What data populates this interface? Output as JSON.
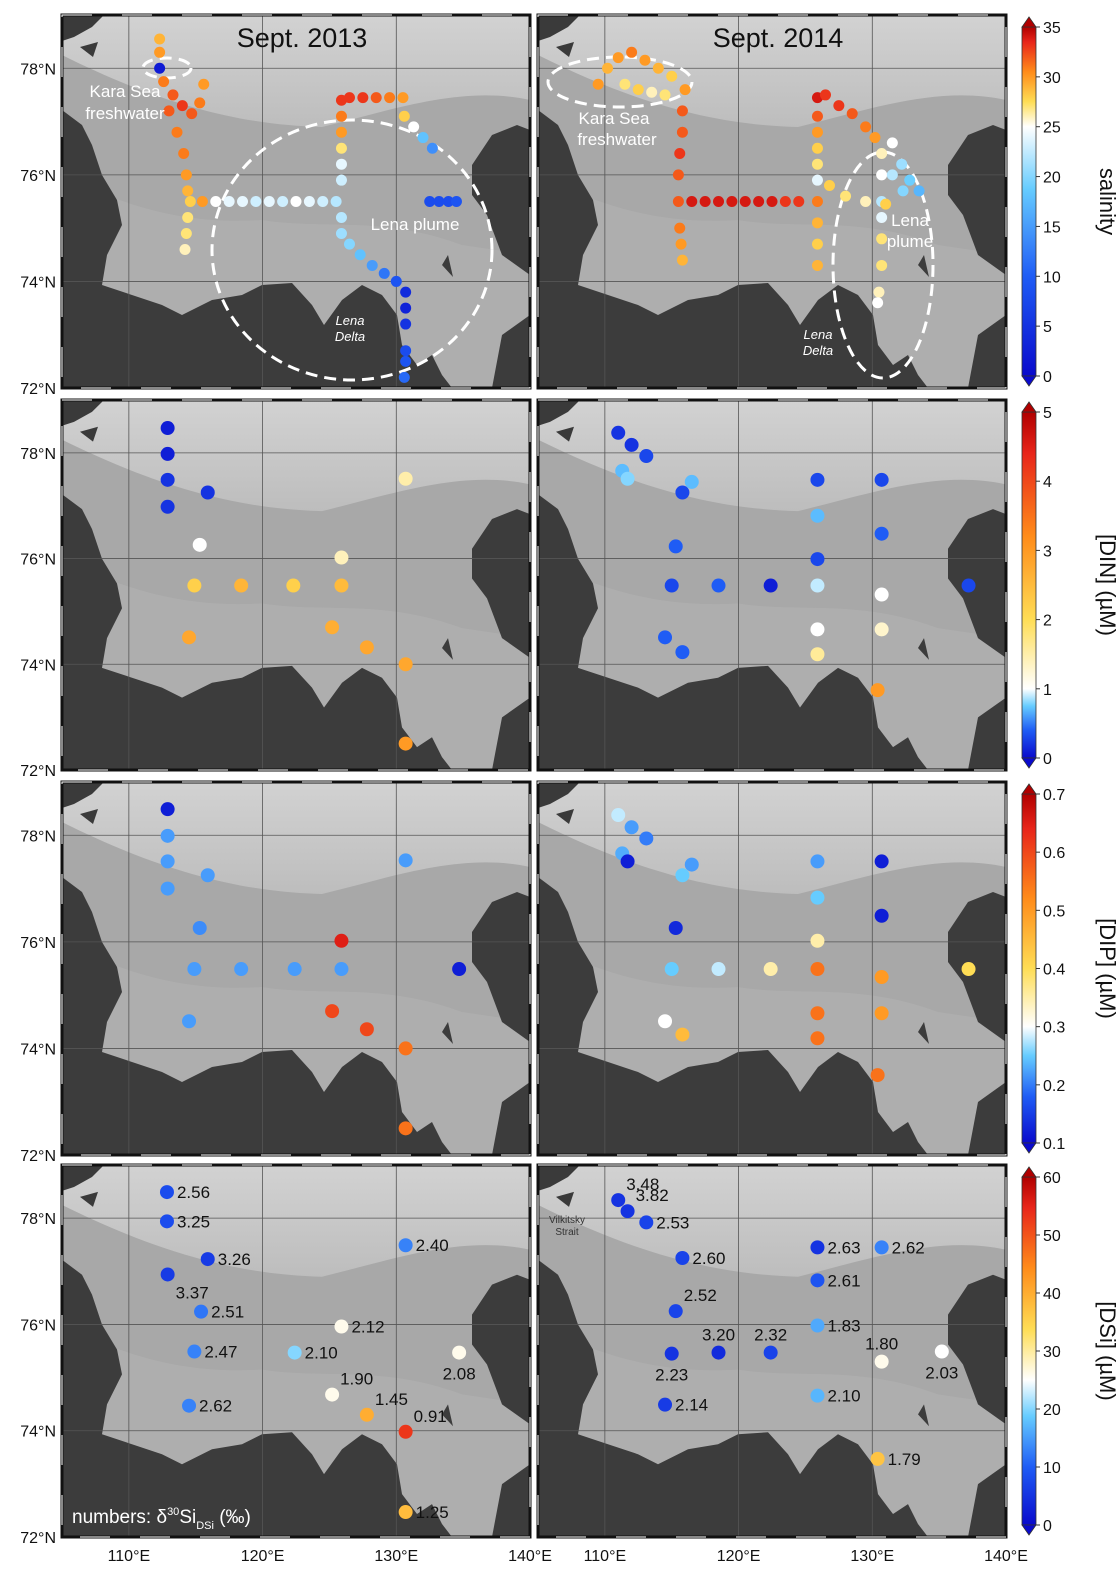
{
  "chart_data": {
    "type": "scatter",
    "xlim": [
      105,
      140
    ],
    "ylim": [
      72,
      79
    ],
    "xticks": [
      {
        "value": 110,
        "label": "110°E"
      },
      {
        "value": 120,
        "label": "120°E"
      },
      {
        "value": 130,
        "label": "130°E"
      },
      {
        "value": 140,
        "label": "140°E"
      }
    ],
    "yticks": [
      {
        "value": 72,
        "label": "72°N"
      },
      {
        "value": 74,
        "label": "74°N"
      },
      {
        "value": 76,
        "label": "76°N"
      },
      {
        "value": 78,
        "label": "78°N"
      }
    ],
    "grid": true,
    "colormap": [
      "#0a0acc",
      "#1f5cf5",
      "#66ccff",
      "#ffffff",
      "#ffdd55",
      "#ff8c1a",
      "#e8251a",
      "#b00000"
    ],
    "rows": [
      {
        "colorbar": {
          "label": "salinity",
          "clim": [
            0,
            35
          ],
          "ticks": [
            0,
            5,
            10,
            15,
            20,
            25,
            30,
            35
          ],
          "white_at": 25
        },
        "panels": [
          {
            "title": "Sept. 2013",
            "annotations": [
              "Kara Sea",
              "freshwater",
              "Lena plume",
              "Lena",
              "Delta"
            ],
            "x": [
              112.3,
              112.3,
              112.3,
              112.6,
              113.3,
              114.0,
              114.7,
              115.3,
              115.6,
              113.0,
              113.6,
              114.1,
              114.3,
              114.4,
              114.6,
              114.4,
              114.3,
              114.2,
              115.5,
              116.5,
              117.5,
              118.5,
              119.5,
              120.5,
              121.5,
              122.5,
              123.5,
              124.5,
              125.5,
              125.9,
              125.9,
              125.9,
              125.9,
              125.9,
              125.9,
              125.9,
              125.9,
              126.5,
              127.5,
              128.5,
              129.5,
              130.5,
              130.6,
              131.3,
              132.0,
              132.7,
              132.5,
              133.2,
              133.9,
              134.5,
              126.5,
              127.3,
              128.2,
              129.1,
              130.0,
              130.7,
              130.7,
              130.7,
              130.7,
              130.7,
              130.6
            ],
            "y": [
              78.55,
              78.3,
              78.0,
              77.75,
              77.5,
              77.3,
              77.15,
              77.35,
              77.7,
              77.2,
              76.8,
              76.4,
              76.0,
              75.7,
              75.5,
              75.2,
              74.9,
              74.6,
              75.5,
              75.5,
              75.5,
              75.5,
              75.5,
              75.5,
              75.5,
              75.5,
              75.5,
              75.5,
              75.5,
              77.4,
              77.1,
              76.8,
              76.5,
              76.2,
              75.9,
              75.2,
              74.9,
              77.45,
              77.45,
              77.45,
              77.45,
              77.45,
              77.1,
              76.9,
              76.7,
              76.5,
              75.5,
              75.5,
              75.5,
              75.5,
              74.7,
              74.5,
              74.3,
              74.15,
              74.0,
              73.8,
              73.5,
              73.2,
              72.7,
              72.5,
              72.2
            ],
            "values": [
              29,
              30,
              2,
              31,
              32,
              33,
              32,
              31,
              30,
              32,
              31,
              31,
              30,
              29,
              28,
              27,
              27,
              26,
              30,
              25,
              24,
              24,
              23,
              24,
              23,
              25,
              24,
              23,
              22,
              33,
              31,
              30,
              27,
              24,
              23,
              22,
              21,
              33,
              33,
              32,
              31,
              30,
              28,
              25,
              18,
              14,
              8,
              8,
              8,
              9,
              20,
              18,
              15,
              12,
              9,
              4,
              3,
              5,
              8,
              9,
              11
            ]
          },
          {
            "title": "Sept. 2014",
            "annotations": [
              "Kara Sea",
              "freshwater",
              "Lena",
              "plume",
              "Lena",
              "Delta"
            ],
            "x": [
              109.5,
              110.2,
              111.0,
              112.0,
              113.0,
              114.0,
              115.0,
              116.0,
              111.5,
              112.5,
              113.5,
              114.5,
              115.8,
              115.8,
              115.6,
              115.5,
              115.5,
              115.6,
              115.7,
              115.8,
              116.5,
              117.5,
              118.5,
              119.5,
              120.5,
              121.5,
              122.5,
              123.5,
              124.5,
              125.9,
              125.9,
              125.9,
              125.9,
              125.9,
              125.9,
              125.9,
              125.9,
              125.9,
              125.9,
              126.5,
              127.5,
              128.5,
              129.5,
              130.2,
              130.7,
              130.7,
              130.7,
              130.7,
              130.7,
              130.7,
              130.5,
              130.4,
              131.5,
              132.2,
              132.8,
              133.5,
              131.5,
              132.3,
              126.8,
              128.0,
              129.5,
              131.0
            ],
            "y": [
              77.7,
              78.0,
              78.2,
              78.3,
              78.15,
              78.0,
              77.85,
              77.6,
              77.7,
              77.6,
              77.55,
              77.5,
              77.2,
              76.8,
              76.4,
              76.0,
              75.5,
              75.0,
              74.7,
              74.4,
              75.5,
              75.5,
              75.5,
              75.5,
              75.5,
              75.5,
              75.5,
              75.5,
              75.5,
              77.45,
              77.1,
              76.8,
              76.5,
              76.2,
              75.9,
              75.5,
              75.1,
              74.7,
              74.3,
              77.5,
              77.3,
              77.15,
              76.9,
              76.7,
              76.4,
              76.0,
              75.5,
              75.2,
              74.8,
              74.3,
              73.8,
              73.6,
              76.6,
              76.2,
              75.9,
              75.7,
              76.0,
              75.7,
              75.8,
              75.6,
              75.5,
              75.45
            ],
            "values": [
              30,
              29,
              30,
              31,
              30,
              29,
              28,
              30,
              27,
              28,
              26,
              27,
              32,
              32,
              33,
              32,
              32,
              31,
              30,
              29,
              34,
              34,
              34,
              34,
              34,
              34,
              34,
              33,
              33,
              34,
              32,
              30,
              28,
              27,
              24,
              31,
              29,
              28,
              29,
              33,
              33,
              32,
              31,
              30,
              26,
              25,
              22,
              24,
              27,
              27,
              26,
              25,
              25,
              21,
              19,
              17,
              22,
              20,
              28,
              27,
              26,
              28
            ]
          }
        ]
      },
      {
        "colorbar": {
          "label": "[DIN] (µM)",
          "clim": [
            0,
            5
          ],
          "ticks": [
            0,
            1,
            2,
            3,
            4,
            5
          ],
          "white_at": 1
        },
        "panels": [
          {
            "x": [
              112.9,
              112.9,
              112.9,
              112.9,
              115.9,
              115.3,
              114.9,
              118.4,
              122.3,
              125.9,
              125.9,
              130.7,
              114.5,
              125.2,
              127.8,
              130.7,
              130.7
            ],
            "y": [
              78.47,
              77.98,
              77.49,
              76.98,
              77.25,
              76.26,
              75.49,
              75.49,
              75.49,
              76.02,
              75.49,
              77.51,
              74.51,
              74.7,
              74.32,
              74.0,
              72.5
            ],
            "values": [
              0.1,
              0.1,
              0.2,
              0.2,
              0.2,
              1.0,
              2.2,
              2.6,
              2.2,
              1.4,
              2.5,
              1.5,
              2.8,
              2.7,
              2.8,
              2.8,
              3.0
            ]
          },
          {
            "x": [
              111.0,
              112.0,
              113.1,
              111.3,
              111.7,
              115.8,
              116.5,
              115.3,
              115.0,
              118.5,
              122.4,
              125.9,
              125.9,
              125.9,
              125.9,
              125.9,
              125.9,
              130.7,
              130.7,
              130.7,
              130.7,
              130.4,
              137.2,
              114.5,
              115.8
            ],
            "y": [
              78.38,
              78.15,
              77.94,
              77.66,
              77.51,
              77.25,
              77.45,
              76.23,
              75.49,
              75.49,
              75.49,
              77.49,
              76.81,
              75.99,
              75.49,
              74.66,
              74.19,
              77.49,
              76.47,
              75.32,
              74.66,
              73.51,
              75.49,
              74.51,
              74.23
            ],
            "values": [
              0.2,
              0.2,
              0.3,
              0.7,
              0.8,
              0.3,
              0.7,
              0.4,
              0.3,
              0.4,
              0.1,
              0.3,
              0.7,
              0.3,
              0.9,
              1.0,
              1.6,
              0.3,
              0.4,
              1.0,
              1.3,
              3.0,
              0.3,
              0.4,
              0.4
            ]
          }
        ]
      },
      {
        "colorbar": {
          "label": "[DIP] (µM)",
          "clim": [
            0.1,
            0.7
          ],
          "ticks": [
            0.1,
            0.2,
            0.3,
            0.4,
            0.5,
            0.6,
            0.7
          ],
          "white_at": 0.3
        },
        "panels": [
          {
            "x": [
              112.9,
              112.9,
              112.9,
              112.9,
              115.9,
              115.3,
              114.9,
              118.4,
              122.4,
              125.9,
              125.9,
              130.7,
              114.5,
              125.2,
              127.8,
              130.7,
              130.7,
              134.7
            ],
            "y": [
              78.49,
              77.99,
              77.51,
              77.0,
              77.25,
              76.26,
              75.49,
              75.49,
              75.49,
              75.49,
              76.02,
              77.53,
              74.51,
              74.7,
              74.36,
              74.0,
              72.5,
              75.49
            ],
            "values": [
              0.12,
              0.22,
              0.22,
              0.22,
              0.22,
              0.21,
              0.22,
              0.22,
              0.22,
              0.22,
              0.65,
              0.22,
              0.22,
              0.6,
              0.6,
              0.55,
              0.55,
              0.12
            ]
          },
          {
            "x": [
              111.0,
              112.0,
              113.1,
              111.3,
              111.7,
              115.8,
              116.5,
              115.3,
              115.0,
              118.5,
              122.4,
              125.9,
              125.9,
              125.9,
              125.9,
              125.9,
              125.9,
              130.7,
              130.7,
              130.7,
              130.7,
              130.4,
              137.2,
              114.5,
              115.8
            ],
            "y": [
              78.38,
              78.15,
              77.94,
              77.66,
              77.51,
              77.25,
              77.45,
              76.26,
              75.49,
              75.49,
              75.49,
              77.51,
              76.83,
              76.02,
              75.49,
              74.66,
              74.19,
              77.51,
              76.49,
              75.34,
              74.66,
              73.5,
              75.49,
              74.51,
              74.26
            ],
            "values": [
              0.28,
              0.22,
              0.2,
              0.23,
              0.12,
              0.25,
              0.22,
              0.13,
              0.25,
              0.28,
              0.35,
              0.22,
              0.25,
              0.35,
              0.55,
              0.55,
              0.55,
              0.12,
              0.12,
              0.5,
              0.5,
              0.55,
              0.4,
              0.3,
              0.45
            ]
          }
        ]
      },
      {
        "colorbar": {
          "label": "[DSi] (µM)",
          "clim": [
            0,
            60
          ],
          "ticks": [
            0,
            10,
            20,
            30,
            40,
            50,
            60
          ],
          "white_at": 25
        },
        "panels": [
          {
            "note": [
              "numbers: δ",
              "30",
              "Si",
              "DSi",
              " (‰)"
            ],
            "x": [
              112.85,
              112.85,
              115.9,
              112.9,
              115.4,
              114.9,
              122.4,
              125.9,
              130.7,
              134.7,
              114.5,
              125.2,
              127.8,
              130.7,
              130.7
            ],
            "y": [
              78.49,
              77.94,
              77.23,
              76.94,
              76.24,
              75.49,
              75.47,
              75.96,
              77.49,
              75.47,
              74.47,
              74.68,
              74.3,
              73.98,
              72.47
            ],
            "values": [
              8,
              8,
              6,
              6,
              12,
              13,
              20,
              26,
              13,
              26,
              13,
              26,
              40,
              53,
              38
            ],
            "point_labels": [
              "2.56",
              "3.25",
              "3.26",
              "3.37",
              "2.51",
              "2.47",
              "2.10",
              "2.12",
              "2.40",
              "2.08",
              "2.62",
              "1.90",
              "1.45",
              "0.91",
              "1.25"
            ]
          },
          {
            "annotations": [
              "Vilkitsky",
              "Strait"
            ],
            "x": [
              111.0,
              111.7,
              113.1,
              115.8,
              115.3,
              115.0,
              118.5,
              122.4,
              125.9,
              125.9,
              125.9,
              125.9,
              130.7,
              130.7,
              135.2,
              114.5,
              130.4
            ],
            "y": [
              78.34,
              78.13,
              77.92,
              77.25,
              76.25,
              75.45,
              75.47,
              75.47,
              77.45,
              76.83,
              75.98,
              74.66,
              77.45,
              75.3,
              75.49,
              74.49,
              73.47
            ],
            "values": [
              5,
              5,
              7,
              7,
              7,
              5,
              4,
              7,
              5,
              9,
              16,
              17,
              13,
              26,
              25,
              6,
              37
            ],
            "point_labels": [
              "3.48",
              "3.82",
              "2.53",
              "2.60",
              "2.52",
              "2.23",
              "3.20",
              "2.32",
              "2.63",
              "2.61",
              "1.83",
              "2.10",
              "2.62",
              "1.80",
              "2.03",
              "2.14",
              "1.79"
            ]
          }
        ]
      }
    ]
  }
}
